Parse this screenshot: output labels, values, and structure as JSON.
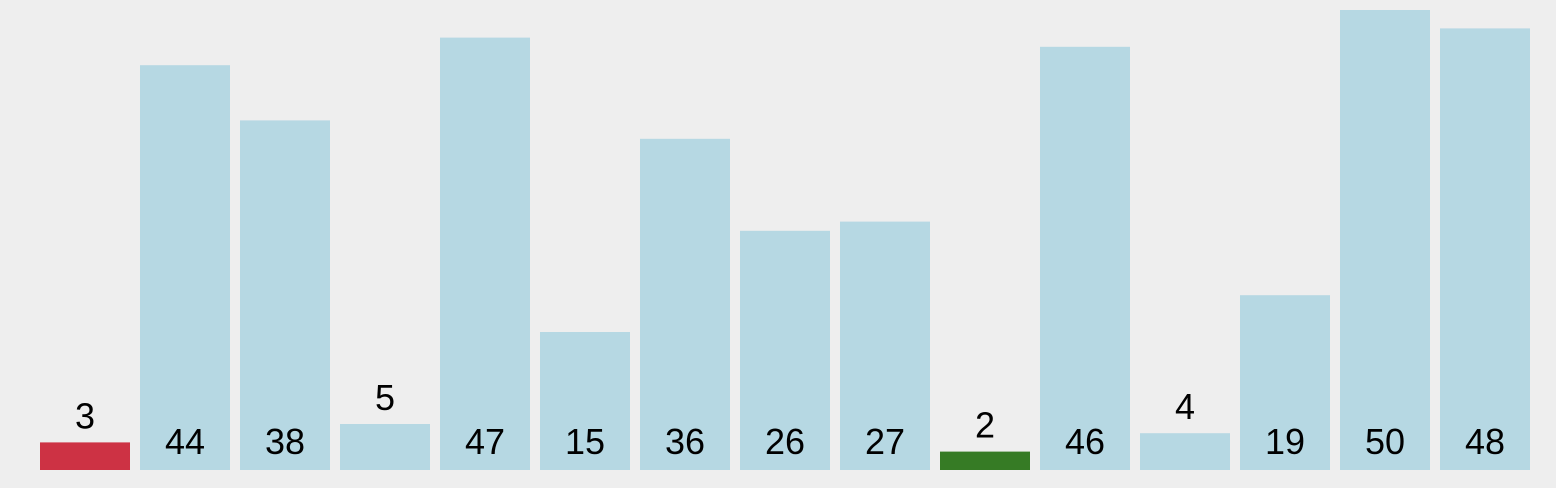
{
  "chart_data": {
    "type": "bar",
    "title": "",
    "xlabel": "",
    "ylabel": "",
    "grid": false,
    "legend": "none",
    "ylim": [
      0,
      50
    ],
    "values": [
      3,
      44,
      38,
      5,
      47,
      15,
      36,
      26,
      27,
      2,
      46,
      4,
      19,
      50,
      48
    ],
    "labels": [
      "3",
      "44",
      "38",
      "5",
      "47",
      "15",
      "36",
      "26",
      "27",
      "2",
      "46",
      "4",
      "19",
      "50",
      "48"
    ],
    "colors": {
      "default": "#b6d8e3",
      "highlight_red": "#cd3244",
      "highlight_green": "#367b25",
      "background": "#eeeeee",
      "text": "#000000"
    },
    "bar_colors": [
      "highlight_red",
      "default",
      "default",
      "default",
      "default",
      "default",
      "default",
      "default",
      "default",
      "highlight_green",
      "default",
      "default",
      "default",
      "default",
      "default"
    ]
  }
}
